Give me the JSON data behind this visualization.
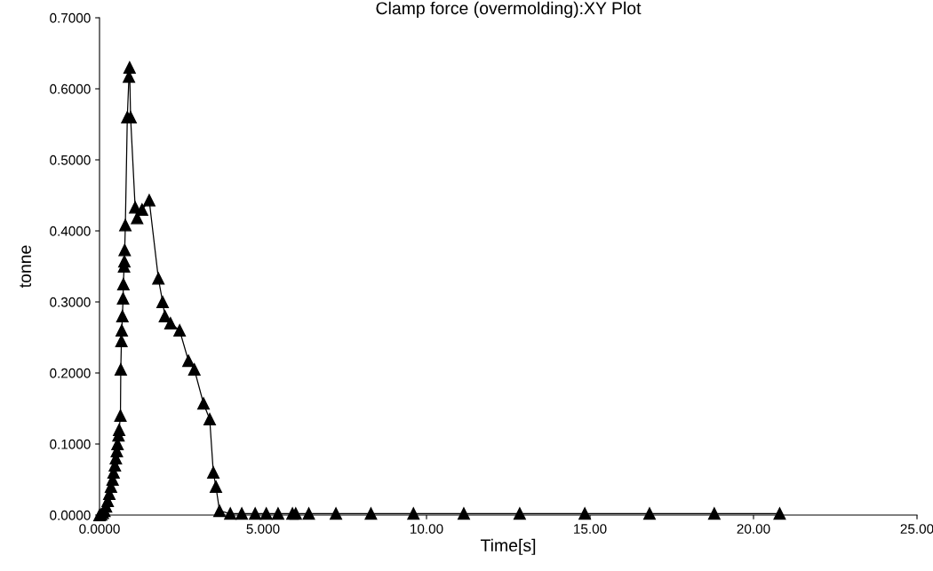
{
  "chart_data": {
    "type": "line",
    "title": "Clamp force (overmolding):XY Plot",
    "xlabel": "Time[s]",
    "ylabel": "tonne",
    "x": [
      0.0,
      0.05,
      0.1,
      0.15,
      0.2,
      0.25,
      0.3,
      0.35,
      0.4,
      0.43,
      0.47,
      0.5,
      0.53,
      0.55,
      0.58,
      0.6,
      0.64,
      0.65,
      0.67,
      0.68,
      0.7,
      0.72,
      0.73,
      0.75,
      0.76,
      0.77,
      0.79,
      0.85,
      0.9,
      0.92,
      0.95,
      1.09,
      1.15,
      1.3,
      1.52,
      1.8,
      1.93,
      2.0,
      2.17,
      2.45,
      2.72,
      2.9,
      3.18,
      3.37,
      3.48,
      3.56,
      3.67,
      4.0,
      4.35,
      4.76,
      5.1,
      5.46,
      5.9,
      6.0,
      6.4,
      7.23,
      8.3,
      9.6,
      11.14,
      12.85,
      14.84,
      16.82,
      18.8,
      20.8
    ],
    "series": [
      {
        "color": "#000000",
        "values": [
          0.0,
          0.001,
          0.003,
          0.006,
          0.012,
          0.02,
          0.03,
          0.04,
          0.05,
          0.06,
          0.07,
          0.08,
          0.09,
          0.1,
          0.112,
          0.12,
          0.14,
          0.205,
          0.245,
          0.26,
          0.28,
          0.305,
          0.325,
          0.35,
          0.357,
          0.373,
          0.408,
          0.56,
          0.617,
          0.63,
          0.56,
          0.433,
          0.418,
          0.43,
          0.443,
          0.333,
          0.3,
          0.28,
          0.27,
          0.26,
          0.217,
          0.205,
          0.157,
          0.135,
          0.06,
          0.04,
          0.006,
          0.002,
          0.002,
          0.002,
          0.002,
          0.002,
          0.002,
          0.002,
          0.002,
          0.002,
          0.002,
          0.002,
          0.002,
          0.002,
          0.002,
          0.002,
          0.002,
          0.002
        ]
      }
    ],
    "xlim": [
      0,
      25
    ],
    "ylim": [
      0,
      0.7
    ],
    "xticks": [
      {
        "value": 0,
        "label": "0.0000"
      },
      {
        "value": 5,
        "label": "5.000"
      },
      {
        "value": 10,
        "label": "10.00"
      },
      {
        "value": 15,
        "label": "15.00"
      },
      {
        "value": 20,
        "label": "20.00"
      },
      {
        "value": 25,
        "label": "25.00"
      }
    ],
    "yticks": [
      {
        "value": 0,
        "label": "0.0000"
      },
      {
        "value": 0.1,
        "label": "0.1000"
      },
      {
        "value": 0.2,
        "label": "0.2000"
      },
      {
        "value": 0.3,
        "label": "0.3000"
      },
      {
        "value": 0.4,
        "label": "0.4000"
      },
      {
        "value": 0.5,
        "label": "0.5000"
      },
      {
        "value": 0.6,
        "label": "0.6000"
      },
      {
        "value": 0.7,
        "label": "0.7000"
      }
    ],
    "marker": "triangle",
    "line_style": "solid"
  }
}
